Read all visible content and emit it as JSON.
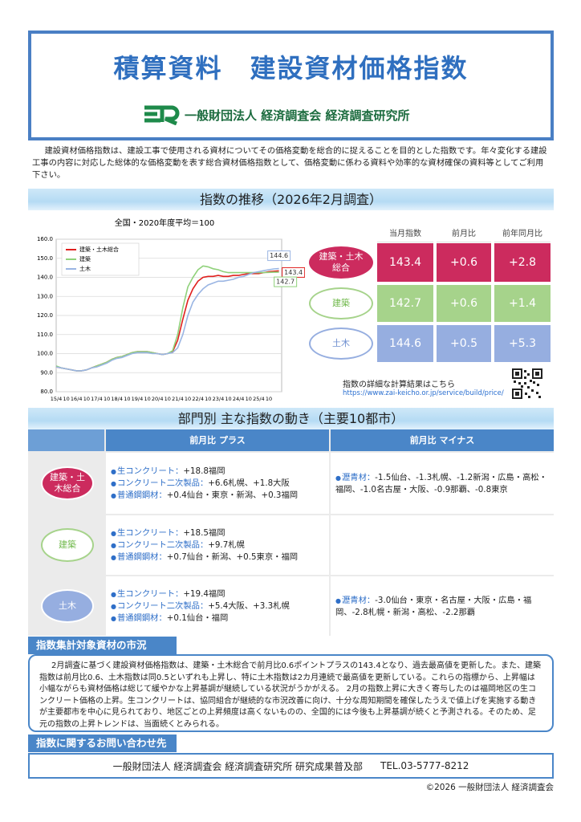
{
  "header": {
    "title": "積算資料　建設資材価格指数",
    "organization": "一般財団法人 経済調査会 経済調査研究所"
  },
  "intro": "建設資材価格指数は、建設工事で使用される資材についてその価格変動を総合的に捉えることを目的とした指数です。年々変化する建設工事の内容に対応した総体的な価格変動を表す総合資材価格指数として、価格変動に係わる資料や効率的な資材確保の資料等としてご利用下さい。",
  "section1": {
    "title": "指数の推移（2026年2月調査）"
  },
  "chart_data": {
    "type": "line",
    "title": "全国・2020年度平均＝100",
    "categories": [
      "15/4",
      null,
      "10",
      null,
      "16/4",
      null,
      "10",
      null,
      "17/4",
      null,
      "10",
      null,
      "18/4",
      null,
      "10",
      null,
      "19/4",
      null,
      "10",
      null,
      "20/4",
      null,
      "10",
      null,
      "21/4",
      null,
      "10",
      null,
      "22/4",
      null,
      "10",
      null,
      "23/4",
      null,
      "10",
      null,
      "24/4",
      null,
      "10",
      null,
      "25/4",
      null,
      "10",
      null,
      null
    ],
    "series": [
      {
        "name": "建築・土木総合",
        "color": "#e0201e",
        "values": [
          93,
          92.5,
          92,
          91.5,
          91,
          91,
          91.5,
          92.5,
          93.5,
          94.5,
          95.5,
          97,
          98,
          98.5,
          99.5,
          100.5,
          101,
          101,
          101,
          100.5,
          100,
          99.5,
          100,
          101,
          107,
          118,
          128,
          134,
          138,
          140,
          140.5,
          140.5,
          141,
          140.5,
          140.5,
          141,
          141,
          141.5,
          142,
          142,
          142,
          142.5,
          143,
          143.2,
          143.4
        ]
      },
      {
        "name": "建築",
        "color": "#8fd17a",
        "values": [
          93.5,
          92.5,
          92,
          91.5,
          91,
          91,
          91.5,
          92.5,
          93.5,
          94.5,
          95.5,
          97,
          98,
          98.5,
          99.5,
          100.5,
          101,
          101,
          101,
          100.5,
          100,
          99.5,
          100,
          101.5,
          110,
          124,
          135,
          140,
          144,
          146,
          145.5,
          144.5,
          144,
          143,
          142.5,
          142.5,
          142.5,
          142.5,
          142.5,
          142.5,
          142.5,
          142.5,
          142.6,
          142.7,
          142.7
        ]
      },
      {
        "name": "土木",
        "color": "#9ab5e3",
        "values": [
          93,
          92.5,
          92,
          91.5,
          91,
          91,
          91.5,
          92.5,
          93,
          94,
          95,
          96.5,
          97.5,
          98,
          99,
          100,
          100.5,
          100.5,
          100.5,
          100,
          100,
          99.5,
          100,
          100.5,
          103,
          110,
          120,
          127,
          131,
          134,
          136,
          137,
          138,
          138,
          138.5,
          139,
          140,
          140.5,
          141.5,
          142.5,
          143,
          143.5,
          144,
          144.4,
          144.6
        ]
      }
    ],
    "ylim": [
      80,
      160
    ],
    "yticks": [
      {
        "value": 80,
        "label": "80.0"
      },
      {
        "value": 90,
        "label": "90.0"
      },
      {
        "value": 100,
        "label": "100.0"
      },
      {
        "value": 110,
        "label": "110.0"
      },
      {
        "value": 120,
        "label": "120.0"
      },
      {
        "value": 130,
        "label": "130.0"
      },
      {
        "value": 140,
        "label": "140.0"
      },
      {
        "value": 150,
        "label": "150.0"
      },
      {
        "value": 160,
        "label": "160.0"
      }
    ],
    "grid": true,
    "legend": "top-left"
  },
  "summary_table": {
    "columns": [
      "当月指数",
      "前月比",
      "前年同月比"
    ],
    "rows": [
      {
        "label": "建築・土木総合",
        "cells": [
          "143.4",
          "+0.6",
          "+2.8"
        ]
      },
      {
        "label": "建築",
        "cells": [
          "142.7",
          "+0.6",
          "+1.4"
        ]
      },
      {
        "label": "土木",
        "cells": [
          "144.6",
          "+0.5",
          "+5.3"
        ]
      }
    ]
  },
  "detail_link": {
    "text": "指数の詳細な計算結果はこちら",
    "url": "https://www.zai-keicho.or.jp/service/build/price/"
  },
  "section2": {
    "title": "部門別 主な指数の動き（主要10都市）",
    "columns": [
      "前月比 プラス",
      "前月比 マイナス"
    ],
    "rows": [
      {
        "label": "建築・土木総合",
        "plus": [
          {
            "item": "生コンクリート：",
            "detail": "+18.8福岡"
          },
          {
            "item": "コンクリート二次製品：",
            "detail": "+6.6札幌、+1.8大阪"
          },
          {
            "item": "普通鋼鋼材：",
            "detail": "+0.4仙台・東京・新潟、+0.3福岡"
          }
        ],
        "minus": [
          {
            "item": "瀝青材：",
            "detail": "-1.5仙台、-1.3札幌、-1.2新潟・広島・高松・福岡、-1.0名古屋・大阪、-0.9那覇、-0.8東京"
          }
        ]
      },
      {
        "label": "建築",
        "plus": [
          {
            "item": "生コンクリート：",
            "detail": "+18.5福岡"
          },
          {
            "item": "コンクリート二次製品：",
            "detail": "+9.7札幌"
          },
          {
            "item": "普通鋼鋼材：",
            "detail": "+0.7仙台・新潟、+0.5東京・福岡"
          }
        ],
        "minus": []
      },
      {
        "label": "土木",
        "plus": [
          {
            "item": "生コンクリート：",
            "detail": "+19.4福岡"
          },
          {
            "item": "コンクリート二次製品：",
            "detail": "+5.4大阪、+3.3札幌"
          },
          {
            "item": "普通鋼鋼材：",
            "detail": "+0.1仙台・福岡"
          }
        ],
        "minus": [
          {
            "item": "瀝青材：",
            "detail": "-3.0仙台・東京・名古屋・大阪・広島・福岡、-2.8札幌・新潟・高松、-2.2那覇"
          }
        ]
      }
    ]
  },
  "section3": {
    "title": "指数集計対象資材の市況",
    "body": "2月調査に基づく建設資材価格指数は、建築・土木総合で前月比0.6ポイントプラスの143.4となり、過去最高値を更新した。また、建築指数は前月比0.6、土木指数は同0.5といずれも上昇し、特に土木指数は2カ月連続で最高値を更新している。これらの指標から、上昇幅は小幅ながらも資材価格は総じて緩やかな上昇基調が継続している状況がうかがえる。 2月の指数上昇に大きく寄与したのは福岡地区の生コンクリート価格の上昇。生コンクリートは、協同組合が継続的な市況改善に向け、十分な周知期間を確保したうえで値上げを実施する動きが主要都市を中心に見られており、地区ごとの上昇頻度は高くないものの、全国的には今後も上昇基調が続くと予測される。そのため、足元の指数の上昇トレンドは、当面続くとみられる。"
  },
  "section4": {
    "title": "指数に関するお問い合わせ先",
    "contact": "一般財団法人 経済調査会 経済調査研究所 研究成果普及部",
    "tel": "TEL.03-5777-8212"
  },
  "footer": "©2026 一般財団法人 経済調査会"
}
